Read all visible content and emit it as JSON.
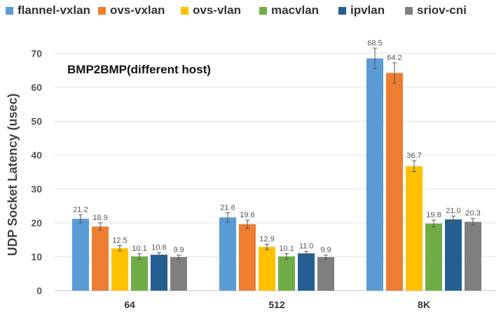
{
  "chart_data": {
    "type": "bar",
    "title": "BMP2BMP(different host)",
    "ylabel": "UDP Socket Latency (usec)",
    "xlabel": "",
    "ylim": [
      0,
      75
    ],
    "yticks": [
      0,
      10,
      20,
      30,
      40,
      50,
      60,
      70
    ],
    "categories": [
      "64",
      "512",
      "8K"
    ],
    "series": [
      {
        "name": "flannel-vxlan",
        "color": "#5b9bd5",
        "values": [
          21.2,
          21.6,
          68.5
        ],
        "labels": [
          "21.2",
          "21.6",
          "68.5"
        ],
        "errors": [
          1.2,
          1.4,
          3.0
        ]
      },
      {
        "name": "ovs-vxlan",
        "color": "#ed7d31",
        "values": [
          18.9,
          19.6,
          64.2
        ],
        "labels": [
          "18.9",
          "19.6",
          "64.2"
        ],
        "errors": [
          1.1,
          1.2,
          3.0
        ]
      },
      {
        "name": "ovs-vlan",
        "color": "#ffc000",
        "values": [
          12.5,
          12.9,
          36.7
        ],
        "labels": [
          "12.5",
          "12.9",
          "36.7"
        ],
        "errors": [
          0.8,
          0.8,
          1.6
        ]
      },
      {
        "name": "macvlan",
        "color": "#70ad47",
        "values": [
          10.1,
          10.1,
          19.8
        ],
        "labels": [
          "10.1",
          "10.1",
          "19.8"
        ],
        "errors": [
          0.8,
          0.8,
          1.0
        ]
      },
      {
        "name": "ipvlan",
        "color": "#255e91",
        "values": [
          10.6,
          11.0,
          21.0
        ],
        "labels": [
          "10.6",
          "11.0",
          "21.0"
        ],
        "errors": [
          0.6,
          0.6,
          1.0
        ]
      },
      {
        "name": "sriov-cni",
        "color": "#7f7f7f",
        "values": [
          9.9,
          9.9,
          20.3
        ],
        "labels": [
          "9.9",
          "9.9",
          "20.3"
        ],
        "errors": [
          0.6,
          0.6,
          1.0
        ]
      }
    ]
  }
}
